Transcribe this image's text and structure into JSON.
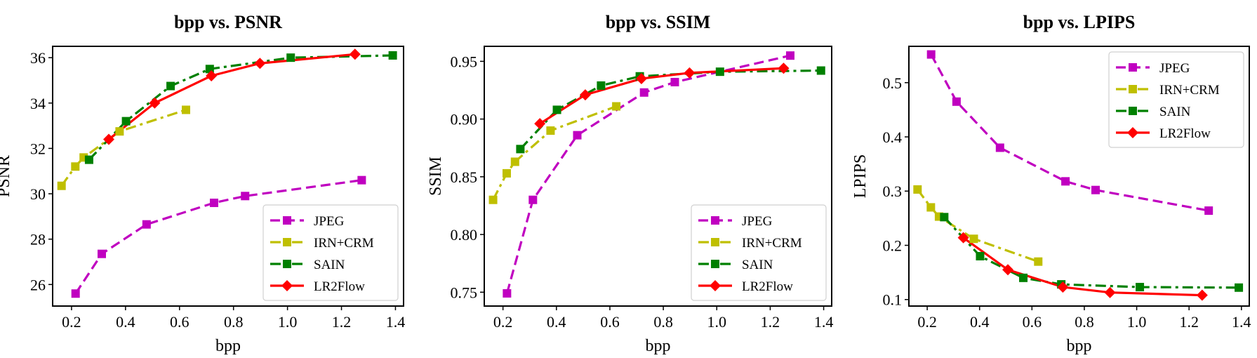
{
  "colors": {
    "JPEG": "#c000c0",
    "IRN+CRM": "#bfbf00",
    "SAIN": "#008000",
    "LR2Flow": "#ff0000"
  },
  "chart_data": [
    {
      "type": "line",
      "title": "bpp vs. PSNR",
      "xlabel": "bpp",
      "ylabel": "PSNR",
      "xlim": [
        0.13,
        1.43
      ],
      "ylim": [
        25.05,
        36.5
      ],
      "xticks": [
        0.2,
        0.4,
        0.6,
        0.8,
        1.0,
        1.2,
        1.4
      ],
      "xtick_labels": [
        "0.2",
        "0.4",
        "0.6",
        "0.8",
        "1.0",
        "1.2",
        "1.4"
      ],
      "yticks": [
        26,
        28,
        30,
        32,
        34,
        36
      ],
      "ytick_labels": [
        "26",
        "28",
        "30",
        "32",
        "34",
        "36"
      ],
      "legend": "lower-right",
      "series": [
        {
          "name": "JPEG",
          "style": "dashed",
          "marker": "square",
          "x": [
            0.215,
            0.312,
            0.478,
            0.728,
            0.843,
            1.275
          ],
          "y": [
            25.6,
            27.35,
            28.65,
            29.6,
            29.9,
            30.6
          ]
        },
        {
          "name": "IRN+CRM",
          "style": "dashdot",
          "marker": "square",
          "x": [
            0.163,
            0.214,
            0.245,
            0.378,
            0.624
          ],
          "y": [
            30.35,
            31.2,
            31.6,
            32.75,
            33.7
          ]
        },
        {
          "name": "SAIN",
          "style": "dashdot",
          "marker": "square",
          "x": [
            0.265,
            0.402,
            0.567,
            0.712,
            1.012,
            1.39
          ],
          "y": [
            31.5,
            33.2,
            34.75,
            35.5,
            36.0,
            36.1
          ]
        },
        {
          "name": "LR2Flow",
          "style": "solid",
          "marker": "diamond",
          "x": [
            0.338,
            0.508,
            0.718,
            0.898,
            1.25
          ],
          "y": [
            32.4,
            34.0,
            35.2,
            35.75,
            36.15
          ]
        }
      ]
    },
    {
      "type": "line",
      "title": "bpp vs. SSIM",
      "xlabel": "bpp",
      "ylabel": "SSIM",
      "xlim": [
        0.13,
        1.43
      ],
      "ylim": [
        0.738,
        0.963
      ],
      "xticks": [
        0.2,
        0.4,
        0.6,
        0.8,
        1.0,
        1.2,
        1.4
      ],
      "xtick_labels": [
        "0.2",
        "0.4",
        "0.6",
        "0.8",
        "1.0",
        "1.2",
        "1.4"
      ],
      "yticks": [
        0.75,
        0.8,
        0.85,
        0.9,
        0.95
      ],
      "ytick_labels": [
        "0.75",
        "0.80",
        "0.85",
        "0.90",
        "0.95"
      ],
      "legend": "lower-right",
      "series": [
        {
          "name": "JPEG",
          "style": "dashed",
          "marker": "square",
          "x": [
            0.215,
            0.312,
            0.478,
            0.728,
            0.843,
            1.275
          ],
          "y": [
            0.749,
            0.83,
            0.886,
            0.923,
            0.932,
            0.955
          ]
        },
        {
          "name": "IRN+CRM",
          "style": "dashdot",
          "marker": "square",
          "x": [
            0.163,
            0.214,
            0.245,
            0.378,
            0.624
          ],
          "y": [
            0.83,
            0.853,
            0.863,
            0.89,
            0.911
          ]
        },
        {
          "name": "SAIN",
          "style": "dashdot",
          "marker": "square",
          "x": [
            0.265,
            0.402,
            0.567,
            0.712,
            1.012,
            1.39
          ],
          "y": [
            0.874,
            0.908,
            0.929,
            0.937,
            0.941,
            0.942
          ]
        },
        {
          "name": "LR2Flow",
          "style": "solid",
          "marker": "diamond",
          "x": [
            0.338,
            0.508,
            0.718,
            0.898,
            1.25
          ],
          "y": [
            0.896,
            0.921,
            0.935,
            0.94,
            0.944
          ]
        }
      ]
    },
    {
      "type": "line",
      "title": "bpp vs. LPIPS",
      "xlabel": "bpp",
      "ylabel": "LPIPS",
      "xlim": [
        0.13,
        1.43
      ],
      "ylim": [
        0.088,
        0.567
      ],
      "xticks": [
        0.2,
        0.4,
        0.6,
        0.8,
        1.0,
        1.2,
        1.4
      ],
      "xtick_labels": [
        "0.2",
        "0.4",
        "0.6",
        "0.8",
        "1.0",
        "1.2",
        "1.4"
      ],
      "yticks": [
        0.1,
        0.2,
        0.3,
        0.4,
        0.5
      ],
      "ytick_labels": [
        "0.1",
        "0.2",
        "0.3",
        "0.4",
        "0.5"
      ],
      "legend": "upper-right",
      "series": [
        {
          "name": "JPEG",
          "style": "dashed",
          "marker": "square",
          "x": [
            0.215,
            0.312,
            0.478,
            0.728,
            0.843,
            1.275
          ],
          "y": [
            0.552,
            0.465,
            0.38,
            0.318,
            0.302,
            0.264
          ]
        },
        {
          "name": "IRN+CRM",
          "style": "dashdot",
          "marker": "square",
          "x": [
            0.163,
            0.214,
            0.245,
            0.378,
            0.624
          ],
          "y": [
            0.303,
            0.27,
            0.253,
            0.212,
            0.17
          ]
        },
        {
          "name": "SAIN",
          "style": "dashdot",
          "marker": "square",
          "x": [
            0.265,
            0.402,
            0.567,
            0.712,
            1.012,
            1.39
          ],
          "y": [
            0.252,
            0.18,
            0.14,
            0.128,
            0.123,
            0.122
          ]
        },
        {
          "name": "LR2Flow",
          "style": "solid",
          "marker": "diamond",
          "x": [
            0.338,
            0.508,
            0.718,
            0.898,
            1.25
          ],
          "y": [
            0.214,
            0.155,
            0.123,
            0.113,
            0.108
          ]
        }
      ]
    }
  ]
}
